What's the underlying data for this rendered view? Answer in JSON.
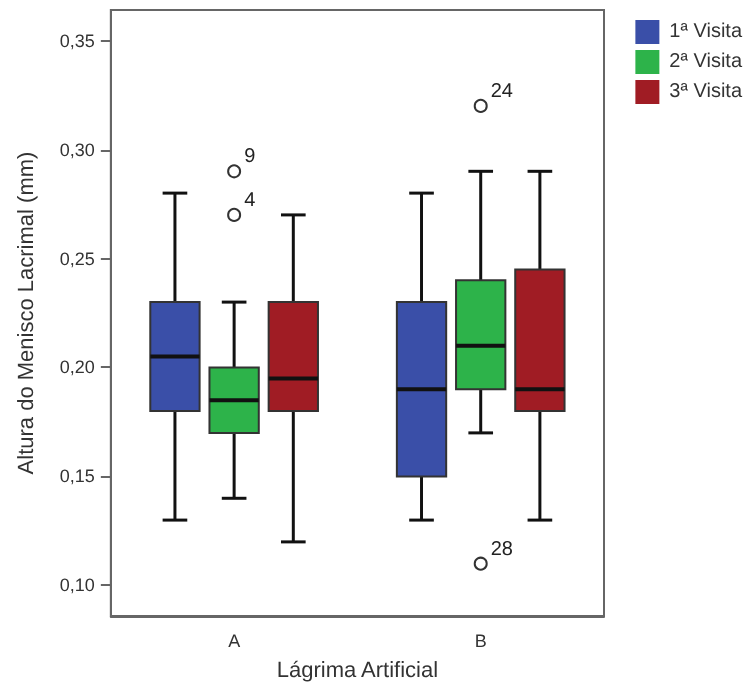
{
  "chart_data": {
    "type": "box",
    "xlabel": "Lágrima Artificial",
    "ylabel": "Altura do Menisco Lacrimal (mm)",
    "categories": [
      "A",
      "B"
    ],
    "series": [
      {
        "name": "1ª Visita",
        "color": "#3a4fa8",
        "boxes": [
          {
            "low": 0.13,
            "q1": 0.18,
            "median": 0.205,
            "q3": 0.23,
            "high": 0.28
          },
          {
            "low": 0.13,
            "q1": 0.15,
            "median": 0.19,
            "q3": 0.23,
            "high": 0.28
          }
        ]
      },
      {
        "name": "2ª Visita",
        "color": "#2db34a",
        "boxes": [
          {
            "low": 0.14,
            "q1": 0.17,
            "median": 0.185,
            "q3": 0.2,
            "high": 0.23,
            "outliers": [
              0.29,
              0.27
            ]
          },
          {
            "low": 0.17,
            "q1": 0.19,
            "median": 0.21,
            "q3": 0.24,
            "high": 0.29,
            "outliers": [
              0.32,
              0.11
            ]
          }
        ]
      },
      {
        "name": "3ª Visita",
        "color": "#a01c24",
        "boxes": [
          {
            "low": 0.12,
            "q1": 0.18,
            "median": 0.195,
            "q3": 0.23,
            "high": 0.27
          },
          {
            "low": 0.13,
            "q1": 0.18,
            "median": 0.19,
            "q3": 0.245,
            "high": 0.29
          }
        ]
      }
    ],
    "ylim": [
      0.086,
      0.364
    ],
    "yticks": [
      {
        "value": 0.1,
        "label": "0,10"
      },
      {
        "value": 0.15,
        "label": "0,15"
      },
      {
        "value": 0.2,
        "label": "0,20"
      },
      {
        "value": 0.25,
        "label": "0,25"
      },
      {
        "value": 0.3,
        "label": "0,30"
      },
      {
        "value": 0.35,
        "label": "0,35"
      }
    ],
    "legend": "top right",
    "annotations": [
      "9",
      "4",
      "24",
      "28"
    ]
  }
}
